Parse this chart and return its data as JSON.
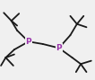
{
  "bg_color": "#f0f0f0",
  "bond_color": "#1a1a1a",
  "P_color": "#9933aa",
  "P_label": "P",
  "fig_width": 1.06,
  "fig_height": 0.89,
  "dpi": 100,
  "line_width": 1.3,
  "font_size": 6.5,
  "P1": [
    0.3,
    0.52
  ],
  "P2": [
    0.62,
    0.6
  ],
  "segments": [
    [
      [
        0.3,
        0.52
      ],
      [
        0.45,
        0.55
      ]
    ],
    [
      [
        0.45,
        0.55
      ],
      [
        0.62,
        0.6
      ]
    ],
    [
      [
        0.3,
        0.52
      ],
      [
        0.18,
        0.38
      ]
    ],
    [
      [
        0.18,
        0.38
      ],
      [
        0.12,
        0.26
      ]
    ],
    [
      [
        0.12,
        0.26
      ],
      [
        0.04,
        0.16
      ]
    ],
    [
      [
        0.12,
        0.26
      ],
      [
        0.2,
        0.17
      ]
    ],
    [
      [
        0.12,
        0.26
      ],
      [
        0.18,
        0.32
      ]
    ],
    [
      [
        0.3,
        0.52
      ],
      [
        0.15,
        0.62
      ]
    ],
    [
      [
        0.15,
        0.62
      ],
      [
        0.06,
        0.72
      ]
    ],
    [
      [
        0.06,
        0.72
      ],
      [
        0.01,
        0.82
      ]
    ],
    [
      [
        0.06,
        0.72
      ],
      [
        0.14,
        0.82
      ]
    ],
    [
      [
        0.06,
        0.72
      ],
      [
        0.15,
        0.68
      ]
    ],
    [
      [
        0.62,
        0.6
      ],
      [
        0.74,
        0.44
      ]
    ],
    [
      [
        0.74,
        0.44
      ],
      [
        0.81,
        0.3
      ]
    ],
    [
      [
        0.81,
        0.3
      ],
      [
        0.74,
        0.2
      ]
    ],
    [
      [
        0.81,
        0.3
      ],
      [
        0.88,
        0.2
      ]
    ],
    [
      [
        0.81,
        0.3
      ],
      [
        0.91,
        0.34
      ]
    ],
    [
      [
        0.62,
        0.6
      ],
      [
        0.76,
        0.72
      ]
    ],
    [
      [
        0.76,
        0.72
      ],
      [
        0.85,
        0.8
      ]
    ],
    [
      [
        0.85,
        0.8
      ],
      [
        0.8,
        0.9
      ]
    ],
    [
      [
        0.85,
        0.8
      ],
      [
        0.91,
        0.9
      ]
    ],
    [
      [
        0.85,
        0.8
      ],
      [
        0.96,
        0.76
      ]
    ]
  ]
}
